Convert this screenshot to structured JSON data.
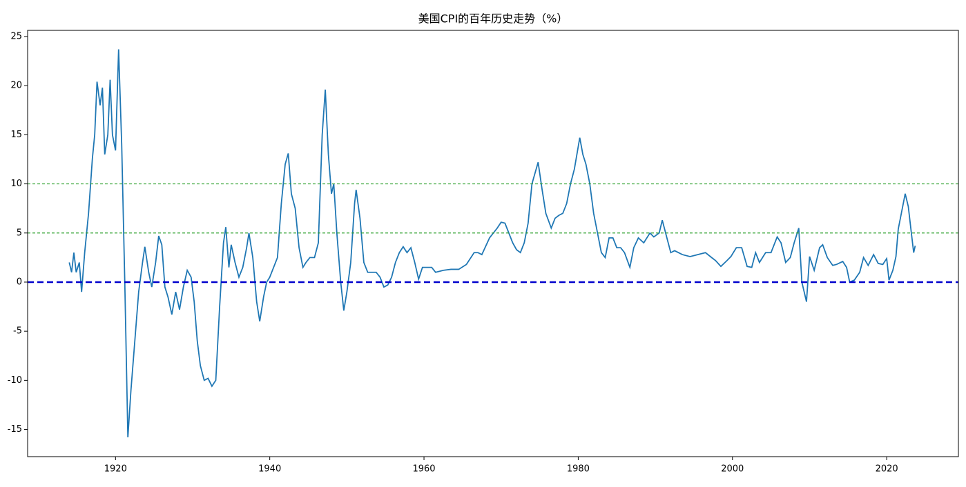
{
  "chart_data": {
    "type": "line",
    "title": "美国CPI的百年历史走势（%）",
    "xlim": [
      1908.6,
      2029.3
    ],
    "ylim": [
      -17.77,
      25.63
    ],
    "xticks": [
      1920,
      1940,
      1960,
      1980,
      2000,
      2020
    ],
    "yticks": [
      -15,
      -10,
      -5,
      0,
      5,
      10,
      15,
      20,
      25
    ],
    "grid": false,
    "hlines": [
      {
        "value": 10,
        "color": "#2ca02c",
        "style": "dashed"
      },
      {
        "value": 5,
        "color": "#2ca02c",
        "style": "dashed"
      },
      {
        "value": 0,
        "color": "#0000cc",
        "style": "dashed"
      }
    ],
    "series": [
      {
        "color": "#1f77b4",
        "x": [
          1914.0,
          1914.3,
          1914.6,
          1914.9,
          1915.3,
          1915.6,
          1916.0,
          1916.5,
          1917.0,
          1917.3,
          1917.6,
          1918.0,
          1918.3,
          1918.6,
          1919.0,
          1919.3,
          1919.6,
          1920.0,
          1920.4,
          1920.8,
          1921.2,
          1921.6,
          1922.0,
          1922.5,
          1923.0,
          1923.5,
          1923.8,
          1924.3,
          1924.7,
          1925.2,
          1925.6,
          1926.0,
          1926.4,
          1926.8,
          1927.3,
          1927.8,
          1928.3,
          1928.8,
          1929.3,
          1929.8,
          1930.2,
          1930.6,
          1931.0,
          1931.5,
          1932.0,
          1932.5,
          1933.0,
          1933.5,
          1934.0,
          1934.3,
          1934.7,
          1935.0,
          1935.5,
          1936.0,
          1936.5,
          1937.0,
          1937.3,
          1937.8,
          1938.3,
          1938.7,
          1939.2,
          1939.6,
          1940.0,
          1940.5,
          1941.0,
          1941.5,
          1942.0,
          1942.4,
          1942.8,
          1943.3,
          1943.8,
          1944.3,
          1944.7,
          1945.2,
          1945.8,
          1946.3,
          1946.8,
          1947.2,
          1947.6,
          1948.0,
          1948.3,
          1948.7,
          1949.2,
          1949.6,
          1950.0,
          1950.5,
          1951.0,
          1951.2,
          1951.7,
          1952.2,
          1952.7,
          1953.3,
          1953.8,
          1954.3,
          1954.8,
          1955.3,
          1955.8,
          1956.3,
          1956.8,
          1957.3,
          1957.8,
          1958.3,
          1958.8,
          1959.3,
          1959.8,
          1960.5,
          1961.0,
          1961.5,
          1962.5,
          1963.5,
          1964.5,
          1965.5,
          1966.5,
          1967.0,
          1967.5,
          1968.5,
          1969.5,
          1970.0,
          1970.5,
          1971.0,
          1971.5,
          1972.0,
          1972.5,
          1973.0,
          1973.5,
          1974.0,
          1974.8,
          1975.3,
          1975.8,
          1976.5,
          1977.0,
          1977.5,
          1978.0,
          1978.5,
          1979.0,
          1979.5,
          1980.2,
          1980.6,
          1981.0,
          1981.5,
          1982.0,
          1982.5,
          1983.0,
          1983.5,
          1984.0,
          1984.5,
          1985.0,
          1985.5,
          1986.0,
          1986.7,
          1987.2,
          1987.8,
          1988.5,
          1989.3,
          1989.8,
          1990.5,
          1990.9,
          1991.5,
          1992.0,
          1992.5,
          1993.5,
          1994.5,
          1995.5,
          1996.5,
          1997.3,
          1997.8,
          1998.5,
          1999.3,
          1999.8,
          2000.5,
          2001.2,
          2001.9,
          2002.5,
          2003.0,
          2003.5,
          2004.3,
          2005.0,
          2005.8,
          2006.3,
          2006.9,
          2007.5,
          2008.0,
          2008.6,
          2009.0,
          2009.6,
          2010.0,
          2010.6,
          2011.3,
          2011.7,
          2012.3,
          2013.0,
          2013.5,
          2014.3,
          2014.8,
          2015.2,
          2015.8,
          2016.5,
          2017.0,
          2017.6,
          2018.3,
          2018.9,
          2019.5,
          2020.0,
          2020.3,
          2020.8,
          2021.2,
          2021.5,
          2021.9,
          2022.4,
          2022.8,
          2023.2,
          2023.5,
          2023.7
        ],
        "values": [
          2.0,
          1.0,
          3.0,
          1.0,
          2.0,
          -1.0,
          3.0,
          7.0,
          12.6,
          15.0,
          20.4,
          18.0,
          19.8,
          13.0,
          15.0,
          20.6,
          15.0,
          13.4,
          23.7,
          14.0,
          0.0,
          -15.8,
          -11.0,
          -6.0,
          -1.0,
          2.0,
          3.6,
          1.0,
          -0.5,
          2.0,
          4.7,
          3.8,
          -0.5,
          -1.5,
          -3.3,
          -1.0,
          -2.8,
          -0.5,
          1.2,
          0.5,
          -2.0,
          -6.0,
          -8.5,
          -10.0,
          -9.8,
          -10.6,
          -10.0,
          -2.5,
          4.0,
          5.6,
          1.5,
          3.8,
          2.0,
          0.5,
          1.5,
          3.5,
          5.0,
          2.5,
          -2.0,
          -4.0,
          -1.5,
          0.0,
          0.5,
          1.5,
          2.5,
          8.0,
          12.0,
          13.1,
          9.0,
          7.5,
          3.5,
          1.5,
          2.0,
          2.5,
          2.5,
          4.0,
          15.0,
          19.6,
          13.0,
          9.0,
          10.0,
          5.0,
          0.0,
          -2.9,
          -1.0,
          2.0,
          8.0,
          9.4,
          6.5,
          2.0,
          1.0,
          1.0,
          1.0,
          0.5,
          -0.5,
          -0.3,
          0.5,
          2.0,
          3.0,
          3.6,
          3.0,
          3.5,
          2.0,
          0.3,
          1.5,
          1.5,
          1.5,
          1.0,
          1.2,
          1.3,
          1.3,
          1.8,
          3.0,
          3.0,
          2.8,
          4.5,
          5.5,
          6.1,
          6.0,
          5.0,
          4.0,
          3.3,
          3.0,
          4.0,
          6.0,
          10.0,
          12.2,
          9.5,
          7.0,
          5.5,
          6.5,
          6.8,
          7.0,
          8.0,
          10.0,
          11.5,
          14.7,
          13.0,
          12.0,
          10.0,
          7.0,
          5.0,
          3.0,
          2.5,
          4.5,
          4.5,
          3.5,
          3.5,
          3.0,
          1.5,
          3.5,
          4.5,
          4.0,
          5.0,
          4.6,
          5.0,
          6.3,
          4.5,
          3.0,
          3.2,
          2.8,
          2.6,
          2.8,
          3.0,
          2.5,
          2.2,
          1.6,
          2.2,
          2.6,
          3.5,
          3.5,
          1.6,
          1.5,
          3.0,
          2.0,
          3.0,
          3.0,
          4.6,
          4.0,
          2.0,
          2.5,
          4.0,
          5.5,
          0.0,
          -2.0,
          2.6,
          1.2,
          3.5,
          3.8,
          2.5,
          1.7,
          1.8,
          2.1,
          1.5,
          0.0,
          0.2,
          1.0,
          2.5,
          1.7,
          2.8,
          1.9,
          1.8,
          2.4,
          0.2,
          1.2,
          2.6,
          5.4,
          7.0,
          9.0,
          7.7,
          5.0,
          3.0,
          3.7
        ]
      }
    ]
  }
}
